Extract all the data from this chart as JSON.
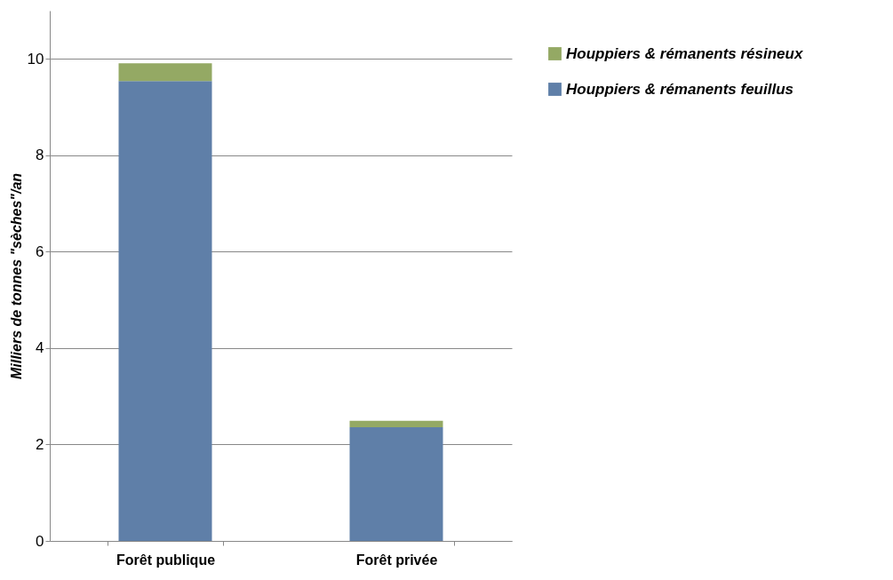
{
  "chart_data": {
    "type": "bar",
    "stacked": true,
    "ylabel": "Milliers de tonnes  \"sèches\"/an",
    "categories": [
      "Forêt publique",
      "Forêt privée"
    ],
    "series": [
      {
        "name": "Houppiers & rémanents feuillus",
        "color": "#5f7fa8",
        "values": [
          9.54,
          2.36
        ]
      },
      {
        "name": "Houppiers & rémanents résineux",
        "color": "#94a964",
        "values": [
          0.37,
          0.13
        ]
      }
    ],
    "ylim": [
      0,
      11
    ],
    "yticks": [
      0,
      2,
      4,
      6,
      8,
      10
    ],
    "grid": "y",
    "legend": "top right"
  }
}
